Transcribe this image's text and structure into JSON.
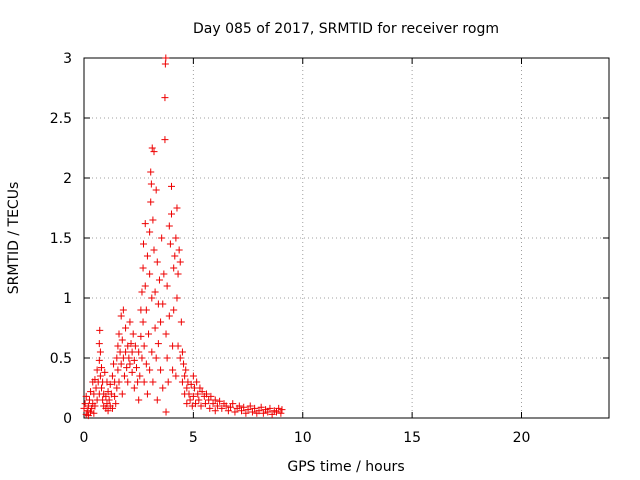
{
  "chart_data": {
    "type": "scatter",
    "title": "Day 085 of 2017, SRMTID for receiver rogm",
    "xlabel": "GPS time / hours",
    "ylabel": "SRMTID / TECUs",
    "xlim": [
      0,
      24
    ],
    "ylim": [
      0,
      3
    ],
    "xticks": [
      0,
      5,
      10,
      15,
      20
    ],
    "yticks": [
      0,
      0.5,
      1,
      1.5,
      2,
      2.5,
      3
    ],
    "xtick_labels": [
      "0",
      "5",
      "10",
      "15",
      "20"
    ],
    "ytick_labels": [
      "0",
      "0.5",
      "1",
      "1.5",
      "2",
      "2.5",
      "3"
    ],
    "grid": true,
    "marker": "plus",
    "color": "#ee0000",
    "series": [
      {
        "points": [
          [
            0.0,
            0.08
          ],
          [
            0.05,
            0.12
          ],
          [
            0.1,
            0.03
          ],
          [
            0.1,
            0.18
          ],
          [
            0.15,
            0.06
          ],
          [
            0.2,
            0.1
          ],
          [
            0.2,
            0.02
          ],
          [
            0.25,
            0.15
          ],
          [
            0.3,
            0.05
          ],
          [
            0.3,
            0.22
          ],
          [
            0.35,
            0.08
          ],
          [
            0.4,
            0.3
          ],
          [
            0.4,
            0.12
          ],
          [
            0.45,
            0.2
          ],
          [
            0.45,
            0.04
          ],
          [
            0.5,
            0.32
          ],
          [
            0.5,
            0.1
          ],
          [
            0.55,
            0.25
          ],
          [
            0.6,
            0.4
          ],
          [
            0.6,
            0.15
          ],
          [
            0.65,
            0.3
          ],
          [
            0.7,
            0.48
          ],
          [
            0.7,
            0.62
          ],
          [
            0.7,
            0.2
          ],
          [
            0.72,
            0.73
          ],
          [
            0.75,
            0.35
          ],
          [
            0.75,
            0.55
          ],
          [
            0.8,
            0.25
          ],
          [
            0.8,
            0.42
          ],
          [
            0.85,
            0.15
          ],
          [
            0.85,
            0.3
          ],
          [
            0.9,
            0.1
          ],
          [
            0.9,
            0.2
          ],
          [
            0.95,
            0.38
          ],
          [
            1.0,
            0.08
          ],
          [
            1.0,
            0.18
          ],
          [
            1.05,
            0.12
          ],
          [
            1.05,
            0.3
          ],
          [
            1.1,
            0.22
          ],
          [
            1.1,
            0.06
          ],
          [
            1.15,
            0.15
          ],
          [
            1.2,
            0.28
          ],
          [
            1.2,
            0.1
          ],
          [
            1.25,
            0.2
          ],
          [
            1.3,
            0.35
          ],
          [
            1.3,
            0.08
          ],
          [
            1.35,
            0.45
          ],
          [
            1.4,
            0.18
          ],
          [
            1.4,
            0.3
          ],
          [
            1.45,
            0.12
          ],
          [
            1.5,
            0.5
          ],
          [
            1.5,
            0.25
          ],
          [
            1.55,
            0.6
          ],
          [
            1.55,
            0.4
          ],
          [
            1.6,
            0.7
          ],
          [
            1.6,
            0.3
          ],
          [
            1.65,
            0.55
          ],
          [
            1.7,
            0.85
          ],
          [
            1.7,
            0.45
          ],
          [
            1.75,
            0.65
          ],
          [
            1.75,
            0.2
          ],
          [
            1.8,
            0.9
          ],
          [
            1.8,
            0.5
          ],
          [
            1.85,
            0.35
          ],
          [
            1.9,
            0.75
          ],
          [
            1.9,
            0.55
          ],
          [
            1.95,
            0.42
          ],
          [
            2.0,
            0.6
          ],
          [
            2.0,
            0.3
          ],
          [
            2.05,
            0.5
          ],
          [
            2.1,
            0.8
          ],
          [
            2.1,
            0.45
          ],
          [
            2.15,
            0.62
          ],
          [
            2.2,
            0.38
          ],
          [
            2.2,
            0.55
          ],
          [
            2.25,
            0.7
          ],
          [
            2.3,
            0.48
          ],
          [
            2.3,
            0.25
          ],
          [
            2.35,
            0.6
          ],
          [
            2.4,
            0.42
          ],
          [
            2.45,
            0.3
          ],
          [
            2.5,
            0.55
          ],
          [
            2.5,
            0.15
          ],
          [
            2.55,
            0.35
          ],
          [
            2.6,
            0.9
          ],
          [
            2.6,
            0.68
          ],
          [
            2.65,
            1.05
          ],
          [
            2.65,
            0.5
          ],
          [
            2.7,
            1.25
          ],
          [
            2.7,
            0.8
          ],
          [
            2.72,
            1.45
          ],
          [
            2.75,
            0.3
          ],
          [
            2.75,
            0.6
          ],
          [
            2.8,
            1.62
          ],
          [
            2.8,
            1.1
          ],
          [
            2.85,
            0.45
          ],
          [
            2.85,
            0.9
          ],
          [
            2.9,
            1.35
          ],
          [
            2.9,
            0.2
          ],
          [
            2.95,
            0.7
          ],
          [
            3.0,
            1.55
          ],
          [
            3.0,
            1.2
          ],
          [
            3.0,
            0.4
          ],
          [
            3.05,
            1.8
          ],
          [
            3.05,
            2.05
          ],
          [
            3.08,
            1.95
          ],
          [
            3.1,
            1.0
          ],
          [
            3.1,
            0.55
          ],
          [
            3.12,
            2.25
          ],
          [
            3.15,
            1.65
          ],
          [
            3.15,
            0.3
          ],
          [
            3.2,
            2.22
          ],
          [
            3.2,
            1.4
          ],
          [
            3.25,
            1.05
          ],
          [
            3.25,
            0.75
          ],
          [
            3.3,
            1.9
          ],
          [
            3.3,
            0.5
          ],
          [
            3.35,
            1.3
          ],
          [
            3.35,
            0.15
          ],
          [
            3.4,
            0.95
          ],
          [
            3.4,
            0.62
          ],
          [
            3.45,
            1.15
          ],
          [
            3.5,
            0.8
          ],
          [
            3.5,
            0.4
          ],
          [
            3.55,
            1.5
          ],
          [
            3.6,
            0.95
          ],
          [
            3.6,
            0.25
          ],
          [
            3.65,
            1.2
          ],
          [
            3.7,
            2.32
          ],
          [
            3.7,
            2.67
          ],
          [
            3.72,
            2.95
          ],
          [
            3.74,
            3.0
          ],
          [
            3.75,
            0.7
          ],
          [
            3.75,
            0.05
          ],
          [
            3.8,
            1.1
          ],
          [
            3.8,
            0.5
          ],
          [
            3.85,
            0.3
          ],
          [
            3.9,
            1.6
          ],
          [
            3.9,
            0.85
          ],
          [
            3.95,
            1.45
          ],
          [
            4.0,
            1.93
          ],
          [
            4.0,
            1.7
          ],
          [
            4.05,
            0.6
          ],
          [
            4.05,
            0.4
          ],
          [
            4.1,
            1.25
          ],
          [
            4.1,
            0.9
          ],
          [
            4.15,
            1.35
          ],
          [
            4.2,
            1.5
          ],
          [
            4.2,
            0.35
          ],
          [
            4.25,
            1.0
          ],
          [
            4.25,
            1.75
          ],
          [
            4.3,
            1.2
          ],
          [
            4.3,
            0.6
          ],
          [
            4.35,
            1.4
          ],
          [
            4.4,
            1.3
          ],
          [
            4.4,
            0.5
          ],
          [
            4.45,
            0.8
          ],
          [
            4.5,
            0.55
          ],
          [
            4.5,
            0.3
          ],
          [
            4.55,
            0.45
          ],
          [
            4.6,
            0.35
          ],
          [
            4.6,
            0.2
          ],
          [
            4.65,
            0.4
          ],
          [
            4.7,
            0.25
          ],
          [
            4.7,
            0.12
          ],
          [
            4.75,
            0.3
          ],
          [
            4.8,
            0.2
          ],
          [
            4.85,
            0.15
          ],
          [
            4.9,
            0.28
          ],
          [
            4.95,
            0.1
          ],
          [
            5.0,
            0.35
          ],
          [
            5.0,
            0.18
          ],
          [
            5.05,
            0.25
          ],
          [
            5.1,
            0.12
          ],
          [
            5.15,
            0.3
          ],
          [
            5.2,
            0.2
          ],
          [
            5.25,
            0.15
          ],
          [
            5.3,
            0.25
          ],
          [
            5.35,
            0.1
          ],
          [
            5.4,
            0.22
          ],
          [
            5.5,
            0.18
          ],
          [
            5.55,
            0.12
          ],
          [
            5.6,
            0.2
          ],
          [
            5.7,
            0.15
          ],
          [
            5.75,
            0.08
          ],
          [
            5.8,
            0.18
          ],
          [
            5.9,
            0.12
          ],
          [
            6.0,
            0.15
          ],
          [
            6.0,
            0.06
          ],
          [
            6.1,
            0.1
          ],
          [
            6.2,
            0.14
          ],
          [
            6.3,
            0.08
          ],
          [
            6.4,
            0.12
          ],
          [
            6.5,
            0.1
          ],
          [
            6.6,
            0.06
          ],
          [
            6.7,
            0.09
          ],
          [
            6.8,
            0.12
          ],
          [
            6.9,
            0.05
          ],
          [
            7.0,
            0.08
          ],
          [
            7.1,
            0.1
          ],
          [
            7.2,
            0.06
          ],
          [
            7.3,
            0.09
          ],
          [
            7.4,
            0.04
          ],
          [
            7.5,
            0.07
          ],
          [
            7.6,
            0.1
          ],
          [
            7.7,
            0.05
          ],
          [
            7.8,
            0.08
          ],
          [
            7.9,
            0.04
          ],
          [
            8.0,
            0.06
          ],
          [
            8.1,
            0.09
          ],
          [
            8.2,
            0.04
          ],
          [
            8.3,
            0.07
          ],
          [
            8.4,
            0.05
          ],
          [
            8.5,
            0.08
          ],
          [
            8.6,
            0.03
          ],
          [
            8.7,
            0.06
          ],
          [
            8.8,
            0.05
          ],
          [
            8.9,
            0.08
          ],
          [
            9.0,
            0.04
          ],
          [
            9.05,
            0.07
          ]
        ]
      }
    ]
  }
}
